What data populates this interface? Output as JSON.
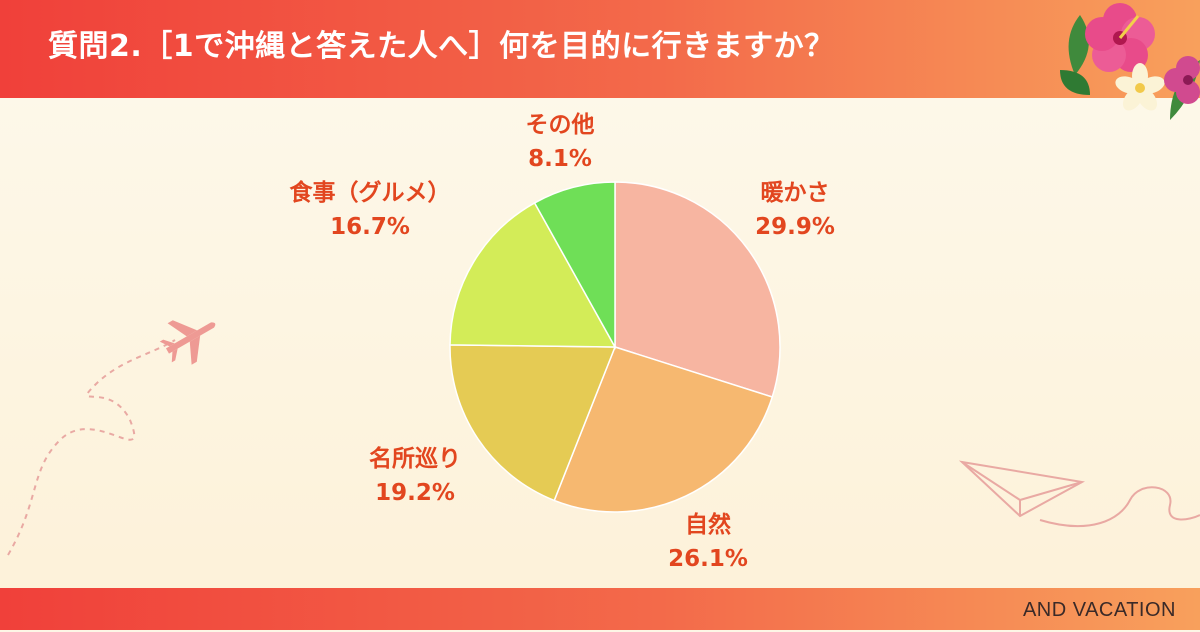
{
  "title": "質問2.［1で沖縄と答えた人へ］何を目的に行きますか？",
  "brand": "AND VACATION",
  "colors": {
    "header_start": "#f0403a",
    "header_end": "#f8a05c",
    "label_text": "#e2461f"
  },
  "chart_data": {
    "type": "pie",
    "start": "12 o'clock",
    "direction": "clockwise",
    "slices": [
      {
        "label": "暖かさ",
        "value": 29.9,
        "value_label": "29.9%",
        "color": "#f7b5a1"
      },
      {
        "label": "自然",
        "value": 26.1,
        "value_label": "26.1%",
        "color": "#f6b870"
      },
      {
        "label": "名所巡り",
        "value": 19.2,
        "value_label": "19.2%",
        "color": "#e5cb54"
      },
      {
        "label": "食事（グルメ）",
        "value": 16.7,
        "value_label": "16.7%",
        "color": "#d3ec58"
      },
      {
        "label": "その他",
        "value": 8.1,
        "value_label": "8.1%",
        "color": "#6fdf57"
      }
    ]
  }
}
